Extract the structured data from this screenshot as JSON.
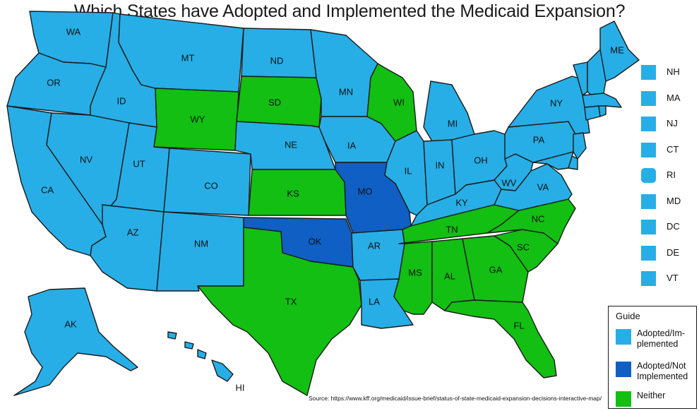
{
  "title": "Which States have Adopted and Implemented the Medicaid Expansion?",
  "colors": {
    "adopted_implemented": "#27aee6",
    "adopted_not_implemented": "#0f5fc4",
    "neither": "#12bf12"
  },
  "states": {
    "WA": {
      "label": "WA",
      "status": "adopted_implemented"
    },
    "OR": {
      "label": "OR",
      "status": "adopted_implemented"
    },
    "CA": {
      "label": "CA",
      "status": "adopted_implemented"
    },
    "NV": {
      "label": "NV",
      "status": "adopted_implemented"
    },
    "ID": {
      "label": "ID",
      "status": "adopted_implemented"
    },
    "MT": {
      "label": "MT",
      "status": "adopted_implemented"
    },
    "WY": {
      "label": "WY",
      "status": "neither"
    },
    "UT": {
      "label": "UT",
      "status": "adopted_implemented"
    },
    "AZ": {
      "label": "AZ",
      "status": "adopted_implemented"
    },
    "CO": {
      "label": "CO",
      "status": "adopted_implemented"
    },
    "NM": {
      "label": "NM",
      "status": "adopted_implemented"
    },
    "ND": {
      "label": "ND",
      "status": "adopted_implemented"
    },
    "SD": {
      "label": "SD",
      "status": "neither"
    },
    "NE": {
      "label": "NE",
      "status": "adopted_implemented"
    },
    "KS": {
      "label": "KS",
      "status": "neither"
    },
    "OK": {
      "label": "OK",
      "status": "adopted_not_implemented"
    },
    "TX": {
      "label": "TX",
      "status": "neither"
    },
    "MN": {
      "label": "MN",
      "status": "adopted_implemented"
    },
    "IA": {
      "label": "IA",
      "status": "adopted_implemented"
    },
    "MO": {
      "label": "MO",
      "status": "adopted_not_implemented"
    },
    "AR": {
      "label": "AR",
      "status": "adopted_implemented"
    },
    "LA": {
      "label": "LA",
      "status": "adopted_implemented"
    },
    "WI": {
      "label": "WI",
      "status": "neither"
    },
    "IL": {
      "label": "IL",
      "status": "adopted_implemented"
    },
    "MI": {
      "label": "MI",
      "status": "adopted_implemented"
    },
    "IN": {
      "label": "IN",
      "status": "adopted_implemented"
    },
    "OH": {
      "label": "OH",
      "status": "adopted_implemented"
    },
    "KY": {
      "label": "KY",
      "status": "adopted_implemented"
    },
    "TN": {
      "label": "TN",
      "status": "neither"
    },
    "MS": {
      "label": "MS",
      "status": "neither"
    },
    "AL": {
      "label": "AL",
      "status": "neither"
    },
    "GA": {
      "label": "GA",
      "status": "neither"
    },
    "FL": {
      "label": "FL",
      "status": "neither"
    },
    "SC": {
      "label": "SC",
      "status": "neither"
    },
    "NC": {
      "label": "NC",
      "status": "neither"
    },
    "VA": {
      "label": "VA",
      "status": "adopted_implemented"
    },
    "WV": {
      "label": "WV",
      "status": "adopted_implemented"
    },
    "PA": {
      "label": "PA",
      "status": "adopted_implemented"
    },
    "NY": {
      "label": "NY",
      "status": "adopted_implemented"
    },
    "ME": {
      "label": "ME",
      "status": "adopted_implemented"
    },
    "AK": {
      "label": "AK",
      "status": "adopted_implemented"
    },
    "HI": {
      "label": "HI",
      "status": "adopted_implemented"
    }
  },
  "small_states": [
    {
      "label": "NH",
      "status": "adopted_implemented"
    },
    {
      "label": "MA",
      "status": "adopted_implemented"
    },
    {
      "label": "NJ",
      "status": "adopted_implemented"
    },
    {
      "label": "CT",
      "status": "adopted_implemented"
    },
    {
      "label": "RI",
      "status": "adopted_implemented"
    },
    {
      "label": "MD",
      "status": "adopted_implemented"
    },
    {
      "label": "DC",
      "status": "adopted_implemented"
    },
    {
      "label": "DE",
      "status": "adopted_implemented"
    },
    {
      "label": "VT",
      "status": "adopted_implemented"
    }
  ],
  "legend": {
    "title": "Guide",
    "items": [
      {
        "label": "Adopted/Im-plemented",
        "status": "adopted_implemented"
      },
      {
        "label": "Adopted/Not Implemented",
        "status": "adopted_not_implemented"
      },
      {
        "label": "Neither",
        "status": "neither"
      }
    ]
  },
  "source": "Source: https://www.kff.org/medicaid/issue-brief/status-of-state-medicaid-expansion-decisions-interactive-map/"
}
